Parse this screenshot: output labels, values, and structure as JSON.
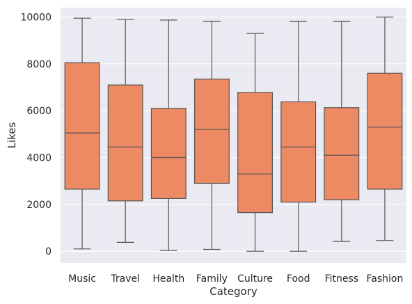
{
  "chart_data": {
    "type": "box",
    "xlabel": "Category",
    "ylabel": "Likes",
    "ylim": [
      -500,
      10400
    ],
    "yticks": [
      0,
      2000,
      4000,
      6000,
      8000,
      10000
    ],
    "grid": true,
    "categories": [
      "Music",
      "Travel",
      "Health",
      "Family",
      "Culture",
      "Food",
      "Fitness",
      "Fashion"
    ],
    "boxes": [
      {
        "category": "Music",
        "min": 100,
        "q1": 2650,
        "median": 5050,
        "q3": 8050,
        "max": 9950
      },
      {
        "category": "Travel",
        "min": 380,
        "q1": 2150,
        "median": 4450,
        "q3": 7100,
        "max": 9900
      },
      {
        "category": "Health",
        "min": 30,
        "q1": 2250,
        "median": 4000,
        "q3": 6100,
        "max": 9870
      },
      {
        "category": "Family",
        "min": 80,
        "q1": 2900,
        "median": 5200,
        "q3": 7350,
        "max": 9820
      },
      {
        "category": "Culture",
        "min": 0,
        "q1": 1650,
        "median": 3300,
        "q3": 6780,
        "max": 9300
      },
      {
        "category": "Food",
        "min": 0,
        "q1": 2100,
        "median": 4450,
        "q3": 6380,
        "max": 9820
      },
      {
        "category": "Fitness",
        "min": 420,
        "q1": 2200,
        "median": 4100,
        "q3": 6130,
        "max": 9820
      },
      {
        "category": "Fashion",
        "min": 460,
        "q1": 2650,
        "median": 5300,
        "q3": 7600,
        "max": 10000
      }
    ],
    "colors": {
      "box_fill": "#ED8A63",
      "line": "#555555",
      "plot_background": "#EAEAF2",
      "grid": "#FFFFFF"
    }
  }
}
